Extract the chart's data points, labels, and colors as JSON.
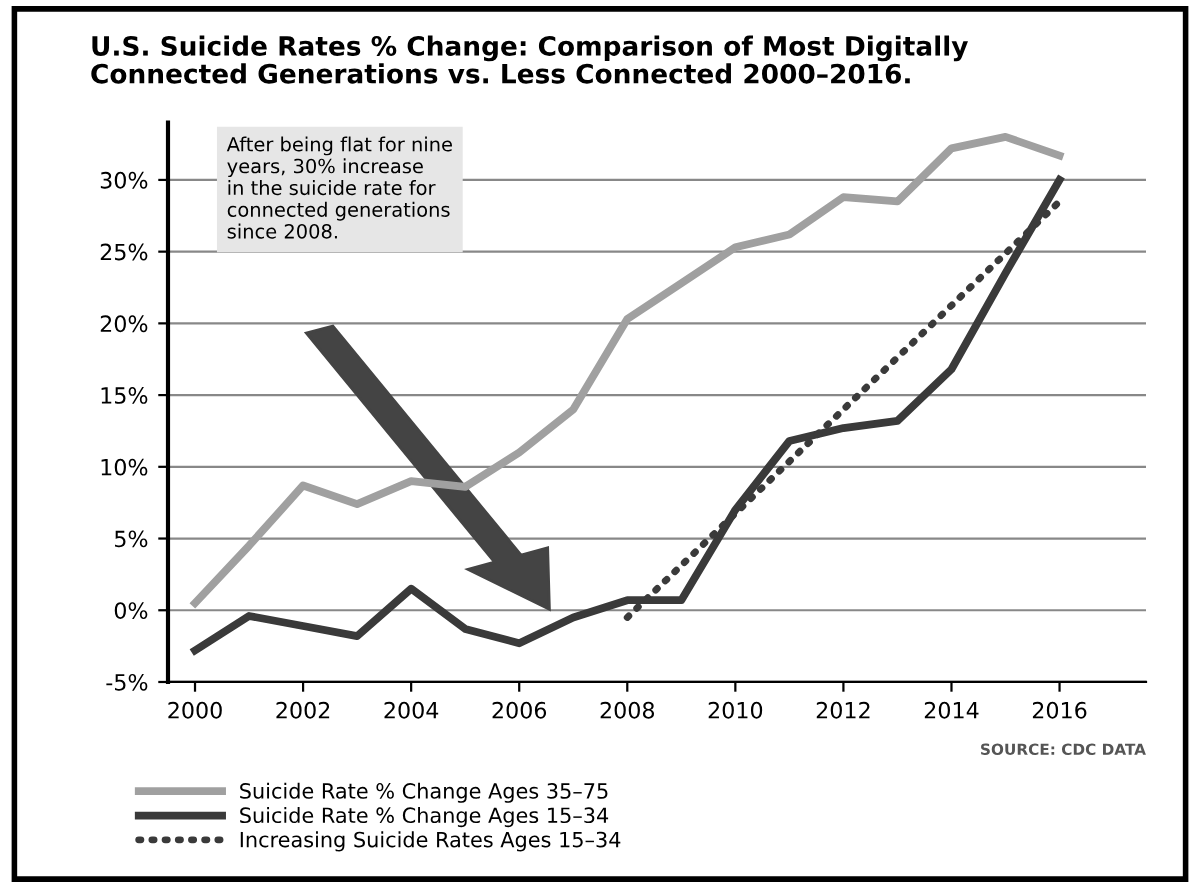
{
  "chart_data": {
    "type": "line",
    "title": "U.S. Suicide Rates % Change: Comparison of Most Digitally\nConnected Generations vs. Less Connected 2000–2016.",
    "annotations": [
      "After being flat for nine\nyears, 30% increase\nin the suicide rate for\nconnected generations\nsince 2008.",
      "SOURCE: CDC DATA"
    ],
    "xlim": [
      1999.5,
      2017.6
    ],
    "xticks": [
      2000,
      2002,
      2004,
      2006,
      2008,
      2010,
      2012,
      2014,
      2016
    ],
    "ylim": [
      -5,
      34
    ],
    "yticks": [
      {
        "value": -5,
        "label": "-5%"
      },
      {
        "value": 0,
        "label": "0%"
      },
      {
        "value": 5,
        "label": "5%"
      },
      {
        "value": 10,
        "label": "10%"
      },
      {
        "value": 15,
        "label": "15%"
      },
      {
        "value": 20,
        "label": "20%"
      },
      {
        "value": 25,
        "label": "25%"
      },
      {
        "value": 30,
        "label": "30%"
      }
    ],
    "grid": "y",
    "legend": "bottom",
    "series": [
      {
        "name": "Suicide Rate % Change Ages 35–75",
        "color": "#a0a0a0",
        "line_style": "solid",
        "x": [
          2000,
          2001,
          2002,
          2003,
          2004,
          2005,
          2006,
          2007,
          2008,
          2009,
          2010,
          2011,
          2012,
          2013,
          2014,
          2015,
          2016
        ],
        "values": [
          0.5,
          4.5,
          8.7,
          7.4,
          9,
          8.6,
          11,
          14,
          20.3,
          22.8,
          25.3,
          26.2,
          28.8,
          28.5,
          32.2,
          33,
          31.7
        ]
      },
      {
        "name": "Suicide Rate % Change Ages 15–34",
        "color": "#3a3a3a",
        "line_style": "solid",
        "x": [
          2000,
          2001,
          2002,
          2003,
          2004,
          2005,
          2006,
          2007,
          2008,
          2009,
          2010,
          2011,
          2012,
          2013,
          2014,
          2015,
          2016
        ],
        "values": [
          -2.8,
          -0.4,
          -1.1,
          -1.8,
          1.5,
          -1.3,
          -2.3,
          -0.5,
          0.7,
          0.7,
          7,
          11.8,
          12.7,
          13.2,
          16.8,
          23.5,
          30
        ]
      },
      {
        "name": "Increasing Suicide Rates Ages 15–34",
        "color": "#3a3a3a",
        "line_style": "dotted",
        "x": [
          2008,
          2016
        ],
        "values": [
          -0.5,
          28.5
        ]
      }
    ]
  }
}
